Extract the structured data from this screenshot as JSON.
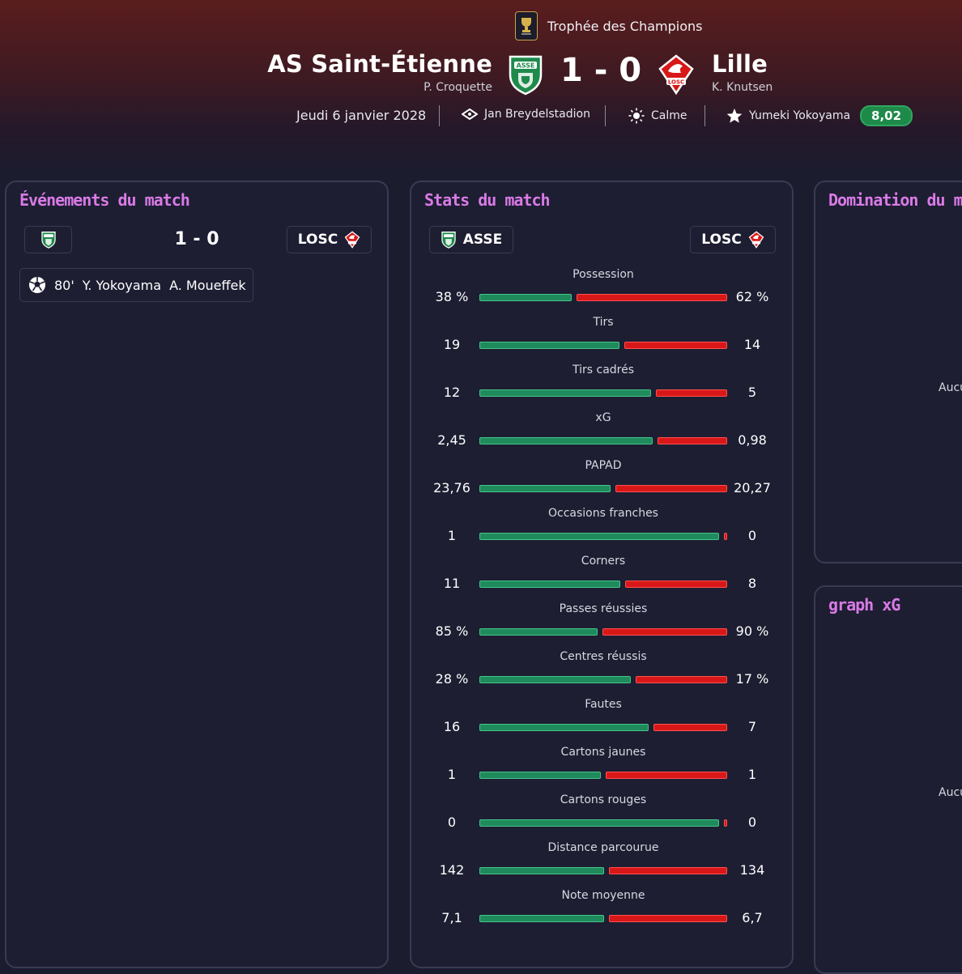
{
  "header": {
    "competition": "Trophée des Champions",
    "home": {
      "name": "AS Saint-Étienne",
      "coach": "P. Croquette"
    },
    "away": {
      "name": "Lille",
      "coach": "K. Knutsen"
    },
    "score": "1 - 0",
    "date": "Jeudi 6 janvier 2028",
    "stadium": "Jan Breydelstadion",
    "weather": "Calme",
    "player_of_match": "Yumeki Yokoyama",
    "rating": "8,02"
  },
  "events_panel": {
    "title": "Événements du match",
    "home_code": "",
    "away_code": "LOSC",
    "score": "1 - 0",
    "events": [
      {
        "minute": "80'",
        "scorer": "Y. Yokoyama",
        "assist": "A. Moueffek"
      }
    ]
  },
  "stats_panel": {
    "title": "Stats du match",
    "home_code": "ASSE",
    "away_code": "LOSC",
    "stats": [
      {
        "label": "Possession",
        "home": "38 %",
        "away": "62 %",
        "home_share": 0.38
      },
      {
        "label": "Tirs",
        "home": "19",
        "away": "14",
        "home_share": 0.576
      },
      {
        "label": "Tirs cadrés",
        "home": "12",
        "away": "5",
        "home_share": 0.706
      },
      {
        "label": "xG",
        "home": "2,45",
        "away": "0,98",
        "home_share": 0.714
      },
      {
        "label": "PAPAD",
        "home": "23,76",
        "away": "20,27",
        "home_share": 0.54
      },
      {
        "label": "Occasions franches",
        "home": "1",
        "away": "0",
        "home_share": 1.0
      },
      {
        "label": "Corners",
        "home": "11",
        "away": "8",
        "home_share": 0.579
      },
      {
        "label": "Passes réussies",
        "home": "85 %",
        "away": "90 %",
        "home_share": 0.486
      },
      {
        "label": "Centres réussis",
        "home": "28 %",
        "away": "17 %",
        "home_share": 0.622
      },
      {
        "label": "Fautes",
        "home": "16",
        "away": "7",
        "home_share": 0.696
      },
      {
        "label": "Cartons jaunes",
        "home": "1",
        "away": "1",
        "home_share": 0.5
      },
      {
        "label": "Cartons rouges",
        "home": "0",
        "away": "0",
        "home_share": 1.0
      },
      {
        "label": "Distance parcourue",
        "home": "142",
        "away": "134",
        "home_share": 0.514
      },
      {
        "label": "Note moyenne",
        "home": "7,1",
        "away": "6,7",
        "home_share": 0.514
      }
    ]
  },
  "domination_panel": {
    "title": "Domination du match",
    "empty_text": "Aucu"
  },
  "xg_panel": {
    "title": "graph xG",
    "empty_text": "Aucu"
  },
  "colors": {
    "home": "#1f8a5c",
    "away": "#d81818",
    "accent": "#d97ae6",
    "rating": "#1e8a4a"
  }
}
